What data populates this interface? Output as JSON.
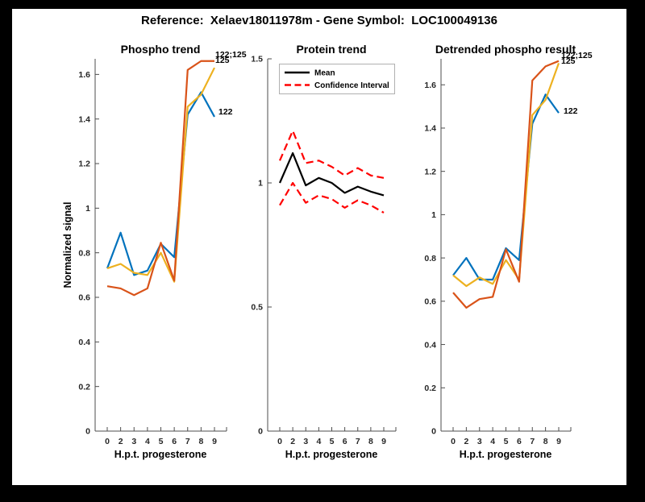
{
  "suptitle": "Reference:  Xelaev18011978m - Gene Symbol:  LOC100049136",
  "figure": {
    "frame_color": "#000000",
    "canvas_color": "#ffffff",
    "axis_color": "#262626"
  },
  "palette": {
    "blue": "#0072BD",
    "yellow": "#EDB120",
    "orange": "#D95319",
    "red": "#FF0000",
    "black": "#000000"
  },
  "chart_data": [
    {
      "type": "line",
      "title": "Phospho trend",
      "xlabel": "H.p.t. progesterone",
      "ylabel": "Normalized signal",
      "categories": [
        "0",
        "2",
        "3",
        "4",
        "5",
        "6",
        "7",
        "8",
        "9"
      ],
      "ylim": [
        0,
        1.67
      ],
      "yticks": [
        0,
        0.2,
        0.4,
        0.6,
        0.8,
        1.0,
        1.2,
        1.4,
        1.6
      ],
      "ytick_labels": [
        "0",
        "0.2",
        "0.4",
        "0.6",
        "0.8",
        "1",
        "1.2",
        "1.4",
        "1.6"
      ],
      "grid": false,
      "series": [
        {
          "name": "122",
          "color": "#0072BD",
          "style": "solid",
          "end_label": "122",
          "values": [
            0.73,
            0.89,
            0.7,
            0.72,
            0.84,
            0.78,
            1.42,
            1.52,
            1.41
          ]
        },
        {
          "name": "125",
          "color": "#EDB120",
          "style": "solid",
          "end_label": "125",
          "values": [
            0.73,
            0.75,
            0.71,
            0.7,
            0.8,
            0.67,
            1.455,
            1.51,
            1.63
          ]
        },
        {
          "name": "122;125",
          "color": "#D95319",
          "style": "solid",
          "end_label": "122;125",
          "values": [
            0.65,
            0.64,
            0.61,
            0.64,
            0.845,
            0.675,
            1.62,
            1.66,
            1.66
          ]
        }
      ]
    },
    {
      "type": "line",
      "title": "Protein trend",
      "xlabel": "H.p.t. progesterone",
      "ylabel": "",
      "categories": [
        "0",
        "2",
        "3",
        "4",
        "5",
        "6",
        "7",
        "8",
        "9"
      ],
      "ylim": [
        0,
        1.5
      ],
      "yticks": [
        0,
        0.5,
        1.0,
        1.5
      ],
      "ytick_labels": [
        "0",
        "0.5",
        "1",
        "1.5"
      ],
      "grid": false,
      "legend": {
        "position": "top-left",
        "entries": [
          {
            "label": "Mean",
            "color": "#000000",
            "style": "solid"
          },
          {
            "label": "Confidence Interval",
            "color": "#FF0000",
            "style": "dashed"
          }
        ]
      },
      "series": [
        {
          "name": "Mean",
          "color": "#000000",
          "style": "solid",
          "values": [
            1.0,
            1.12,
            0.99,
            1.02,
            1.0,
            0.96,
            0.985,
            0.965,
            0.95
          ]
        },
        {
          "name": "Confidence Interval upper",
          "color": "#FF0000",
          "style": "dashed",
          "values": [
            1.09,
            1.21,
            1.08,
            1.09,
            1.065,
            1.03,
            1.06,
            1.03,
            1.02
          ]
        },
        {
          "name": "Confidence Interval lower",
          "color": "#FF0000",
          "style": "dashed",
          "values": [
            0.91,
            1.0,
            0.92,
            0.95,
            0.935,
            0.9,
            0.93,
            0.91,
            0.88
          ]
        }
      ]
    },
    {
      "type": "line",
      "title": "Detrended phospho result",
      "xlabel": "H.p.t. progesterone",
      "ylabel": "",
      "categories": [
        "0",
        "2",
        "3",
        "4",
        "5",
        "6",
        "7",
        "8",
        "9"
      ],
      "ylim": [
        0,
        1.72
      ],
      "yticks": [
        0,
        0.2,
        0.4,
        0.6,
        0.8,
        1.0,
        1.2,
        1.4,
        1.6
      ],
      "ytick_labels": [
        "0",
        "0.2",
        "0.4",
        "0.6",
        "0.8",
        "1",
        "1.2",
        "1.4",
        "1.6"
      ],
      "grid": false,
      "series": [
        {
          "name": "122",
          "color": "#0072BD",
          "style": "solid",
          "end_label": "122",
          "values": [
            0.72,
            0.8,
            0.7,
            0.7,
            0.845,
            0.79,
            1.42,
            1.555,
            1.47
          ]
        },
        {
          "name": "125",
          "color": "#EDB120",
          "style": "solid",
          "end_label": "125",
          "values": [
            0.72,
            0.67,
            0.71,
            0.68,
            0.79,
            0.7,
            1.46,
            1.53,
            1.7
          ]
        },
        {
          "name": "122;125",
          "color": "#D95319",
          "style": "solid",
          "end_label": "122;125",
          "values": [
            0.64,
            0.57,
            0.61,
            0.62,
            0.84,
            0.69,
            1.62,
            1.685,
            1.71
          ]
        }
      ]
    }
  ]
}
